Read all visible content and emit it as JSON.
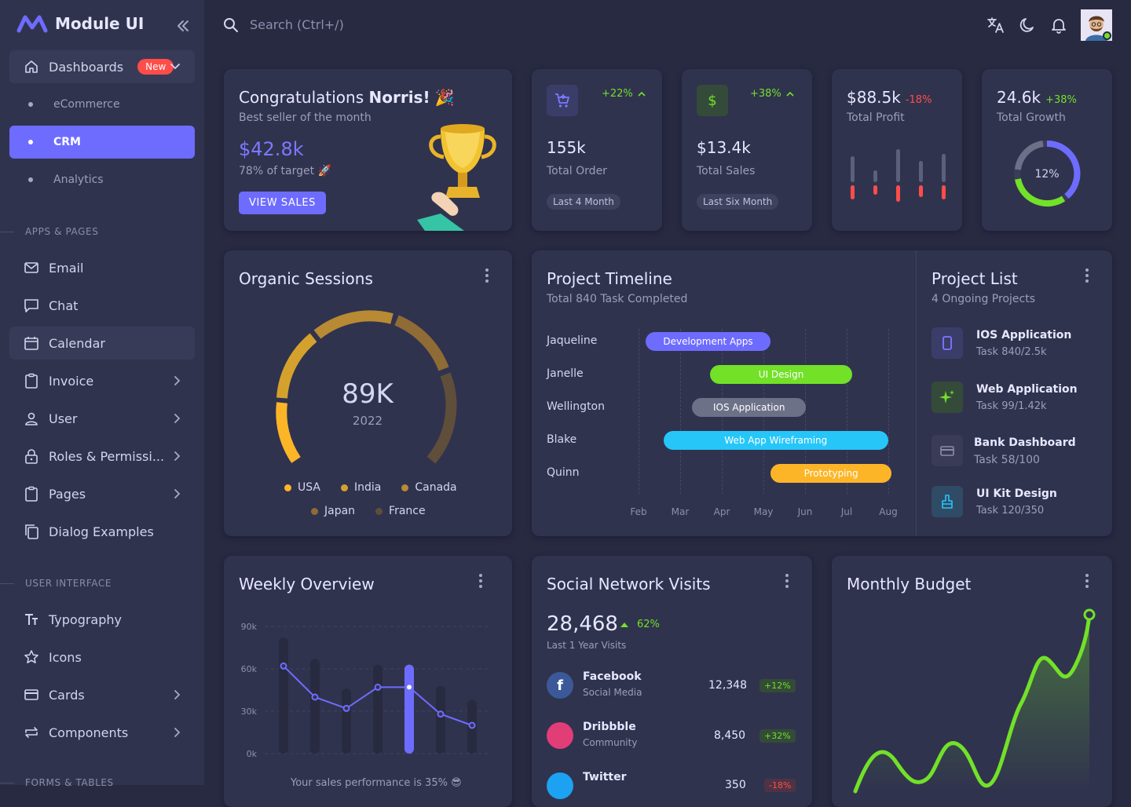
{
  "app": {
    "name": "Module UI"
  },
  "sidebar": {
    "dashboards": {
      "label": "Dashboards",
      "badge": "New"
    },
    "dash_items": [
      "eCommerce",
      "CRM",
      "Analytics"
    ],
    "section_apps": "APPS & PAGES",
    "apps": [
      {
        "label": "Email",
        "icon": "email-icon"
      },
      {
        "label": "Chat",
        "icon": "chat-icon"
      },
      {
        "label": "Calendar",
        "icon": "calendar-icon"
      },
      {
        "label": "Invoice",
        "icon": "invoice-icon"
      },
      {
        "label": "User",
        "icon": "user-icon"
      },
      {
        "label": "Roles & Permissi...",
        "icon": "lock-icon"
      },
      {
        "label": "Pages",
        "icon": "pages-icon"
      },
      {
        "label": "Dialog Examples",
        "icon": "dialog-icon"
      }
    ],
    "section_ui": "USER INTERFACE",
    "ui": [
      {
        "label": "Typography",
        "icon": "typography-icon"
      },
      {
        "label": "Icons",
        "icon": "star-icon"
      },
      {
        "label": "Cards",
        "icon": "card-icon"
      },
      {
        "label": "Components",
        "icon": "components-icon"
      }
    ],
    "section_forms": "FORMS & TABLES"
  },
  "header": {
    "search_placeholder": "Search (Ctrl+/)"
  },
  "congrats": {
    "title_prefix": "Congratulations",
    "name": "Norris!",
    "subtitle": "Best seller of the month",
    "amount": "$42.8k",
    "target": "78% of target",
    "button": "VIEW SALES"
  },
  "total_order": {
    "change": "+22%",
    "value": "155k",
    "label": "Total Order",
    "chip": "Last 4 Month"
  },
  "total_sales": {
    "change": "+38%",
    "value": "$13.4k",
    "label": "Total Sales",
    "chip": "Last Six Month"
  },
  "total_profit": {
    "value": "$88.5k",
    "change": "-18%",
    "label": "Total Profit",
    "bars": [
      [
        0.55,
        0.3
      ],
      [
        0.25,
        0.2
      ],
      [
        0.7,
        0.35
      ],
      [
        0.45,
        0.25
      ],
      [
        0.6,
        0.3
      ]
    ]
  },
  "total_growth": {
    "value": "24.6k",
    "change": "+38%",
    "label": "Total Growth",
    "center": "12%"
  },
  "organic": {
    "title": "Organic Sessions",
    "value": "89K",
    "year": "2022",
    "legend": [
      {
        "name": "USA",
        "color": "#fdb528"
      },
      {
        "name": "India",
        "color": "#d4a22c"
      },
      {
        "name": "Canada",
        "color": "#b88a33"
      },
      {
        "name": "Japan",
        "color": "#8f6b35"
      },
      {
        "name": "France",
        "color": "#5f4e3a"
      }
    ]
  },
  "timeline": {
    "title": "Project Timeline",
    "subtitle": "Total 840 Task Completed",
    "rows": [
      {
        "name": "Jaqueline",
        "task": "Development Apps",
        "color": "#6e6cff",
        "start": 0.02,
        "end": 0.37
      },
      {
        "name": "Janelle",
        "task": "UI Design",
        "color": "#72e128",
        "start": 0.2,
        "end": 0.6
      },
      {
        "name": "Wellington",
        "task": "IOS Application",
        "color": "#6d7188",
        "start": 0.15,
        "end": 0.47
      },
      {
        "name": "Blake",
        "task": "Web App Wireframing",
        "color": "#26c6f9",
        "start": 0.07,
        "end": 0.7
      },
      {
        "name": "Quinn",
        "task": "Prototyping",
        "color": "#fdb528",
        "start": 0.37,
        "end": 0.71
      }
    ],
    "months": [
      "Feb",
      "Mar",
      "Apr",
      "May",
      "Jun",
      "Jul",
      "Aug"
    ]
  },
  "project_list": {
    "title": "Project List",
    "subtitle": "4 Ongoing Projects",
    "items": [
      {
        "title": "IOS Application",
        "sub": "Task 840/2.5k",
        "icon": "mobile-icon",
        "color": "#6e6cff"
      },
      {
        "title": "Web Application",
        "sub": "Task 99/1.42k",
        "icon": "sparkle-icon",
        "color": "#72e128"
      },
      {
        "title": "Bank Dashboard",
        "sub": "Task 58/100",
        "icon": "bank-card-icon",
        "color": "#8a8ca8"
      },
      {
        "title": "UI Kit Design",
        "sub": "Task 120/350",
        "icon": "brush-icon",
        "color": "#26c6f9"
      }
    ]
  },
  "weekly": {
    "title": "Weekly Overview",
    "footer": "Your sales performance is 35% 😎",
    "chart_data": {
      "type": "bar",
      "y_ticks": [
        "90k",
        "60k",
        "30k",
        "0k"
      ],
      "ylim": [
        0,
        90
      ],
      "bars": [
        82,
        67,
        46,
        63,
        63,
        48,
        38
      ],
      "line": [
        62,
        40,
        32,
        47,
        47,
        28,
        20
      ],
      "highlight_index": 4
    }
  },
  "social": {
    "title": "Social Network Visits",
    "total": "28,468",
    "change": "62%",
    "caption": "Last 1 Year Visits",
    "items": [
      {
        "name": "Facebook",
        "sub": "Social Media",
        "value": "12,348",
        "change": "+12%",
        "color": "#3b5998",
        "dir": "up"
      },
      {
        "name": "Dribbble",
        "sub": "Community",
        "value": "8,450",
        "change": "+32%",
        "color": "#e13d76",
        "dir": "up"
      },
      {
        "name": "Twitter",
        "sub": "",
        "value": "350",
        "change": "-18%",
        "color": "#1da1f2",
        "dir": "down"
      }
    ]
  },
  "budget": {
    "title": "Monthly Budget"
  }
}
